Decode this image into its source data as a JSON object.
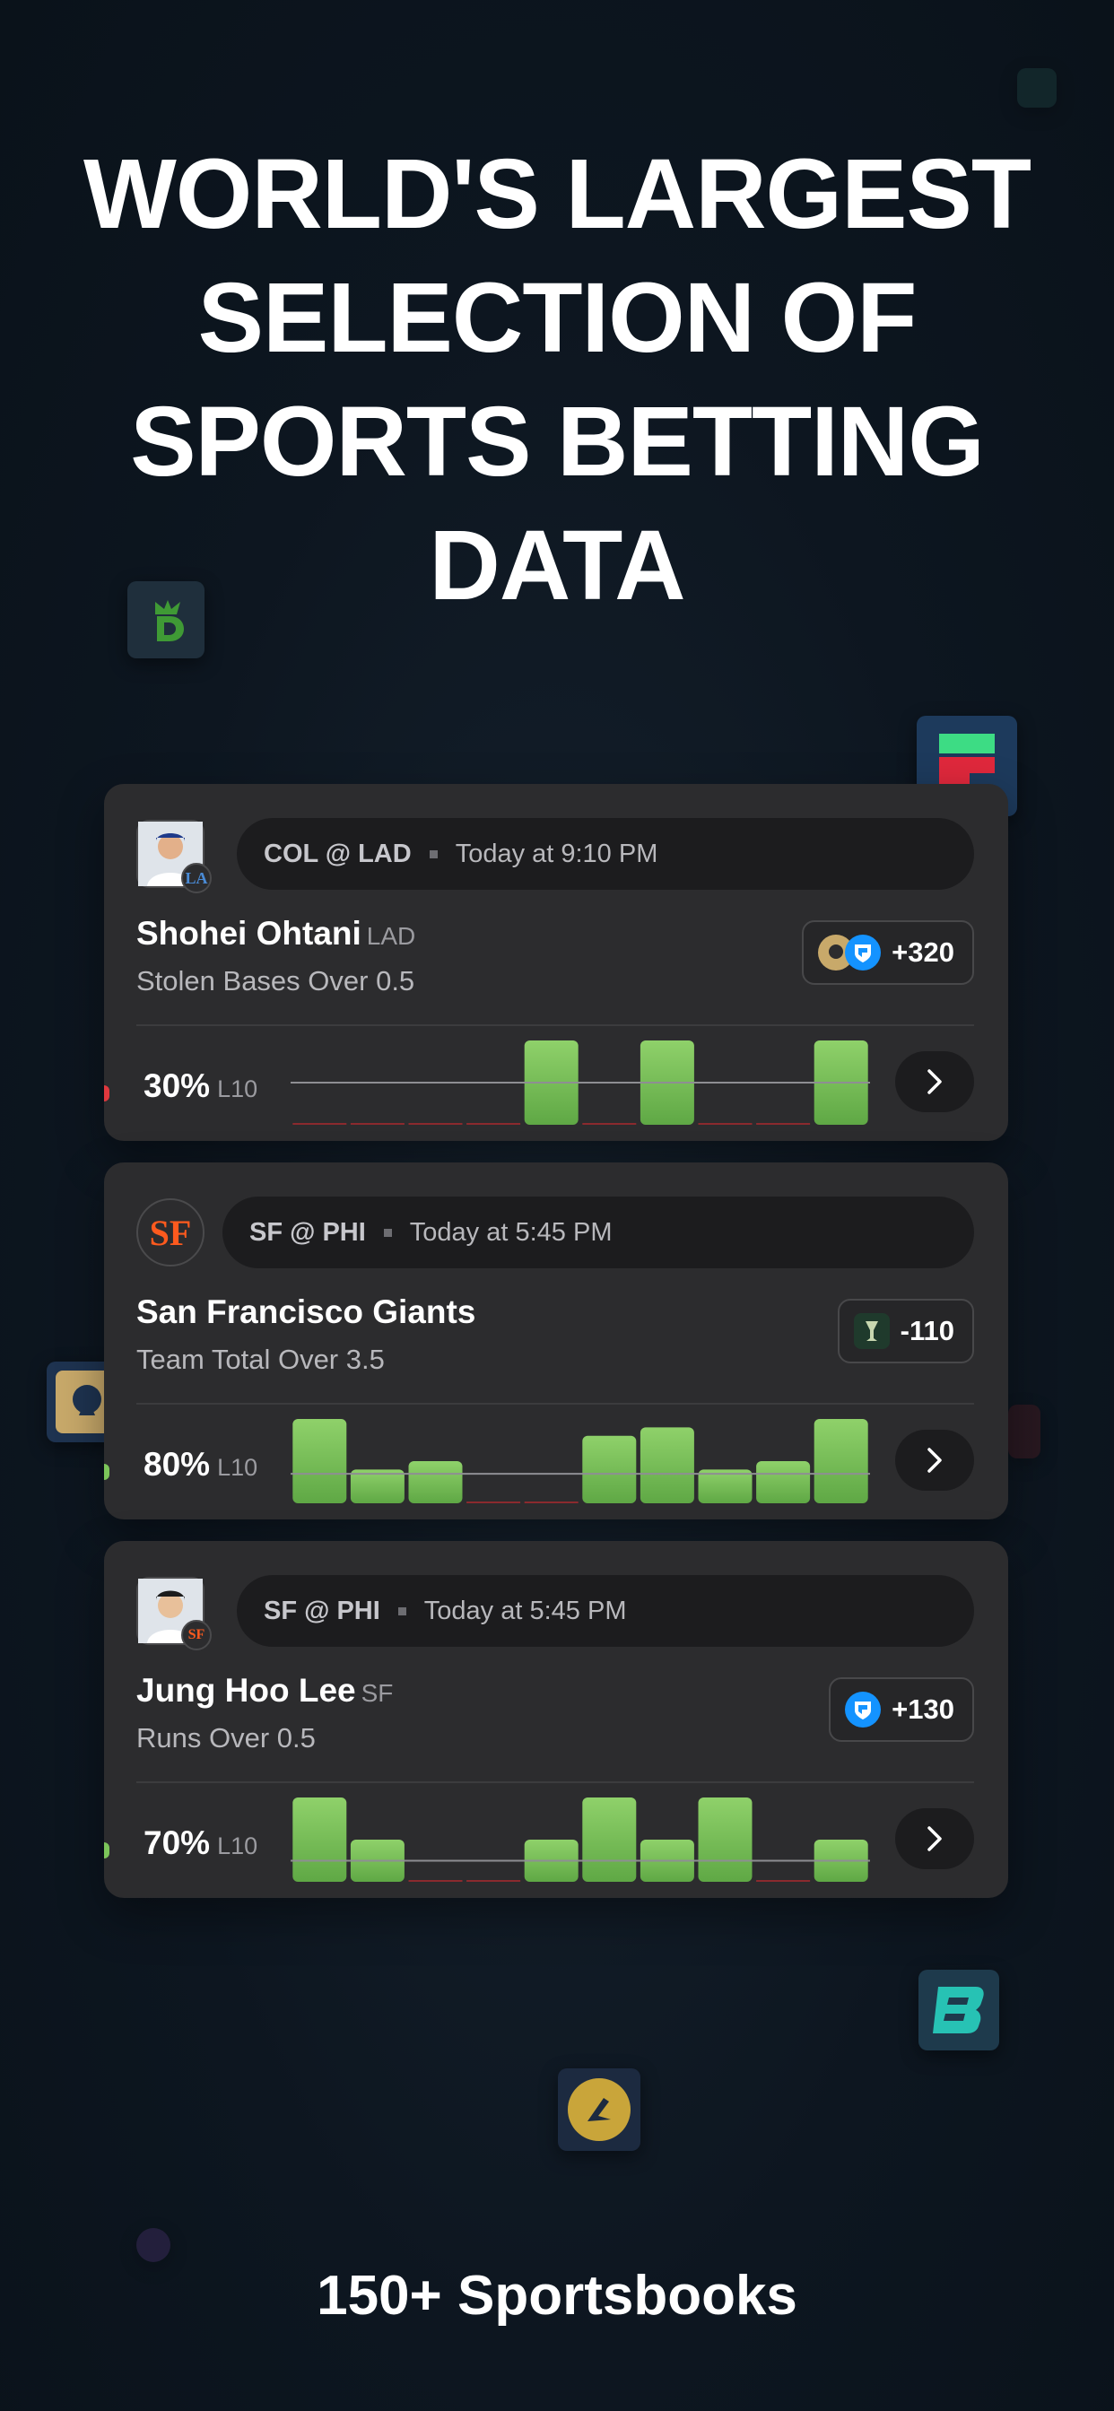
{
  "headline": {
    "line1": "WORLD'S LARGEST",
    "line2": "SELECTION OF",
    "line3": "SPORTS BETTING",
    "line4": "DATA"
  },
  "footer": "150+ Sportsbooks",
  "sportsbook_logos": [
    "draftkings-logo",
    "fliff-logo",
    "betmgm-logo",
    "betrivers-logo",
    "bet365-logo"
  ],
  "colors": {
    "hit_bar": "#7cc55a",
    "miss_line": "#8b2a2e",
    "card_bg": "#2c2c2e",
    "pill_bg": "#1c1c1e"
  },
  "cards": [
    {
      "matchup": "COL @ LAD",
      "time": "Today at 9:10 PM",
      "name": "Shohei Ohtani",
      "team": "LAD",
      "market": "Stolen Bases Over 0.5",
      "odds": "+320",
      "books": [
        "betmgm-icon",
        "fanduel-icon"
      ],
      "pct": "30%",
      "window": "L10",
      "edge_color": "#e0383e",
      "bars": [
        0,
        0,
        0,
        0,
        1,
        0,
        1,
        0,
        0,
        1
      ],
      "line": 0.5
    },
    {
      "matchup": "SF @ PHI",
      "time": "Today at 5:45 PM",
      "name": "San Francisco Giants",
      "team": "",
      "market": "Team Total Over 3.5",
      "odds": "-110",
      "books": [
        "circa-icon"
      ],
      "pct": "80%",
      "window": "L10",
      "edge_color": "#7cc55a",
      "bars": [
        1,
        0.4,
        0.5,
        0,
        0,
        0.8,
        0.9,
        0.4,
        0.5,
        1
      ],
      "line": 0.35
    },
    {
      "matchup": "SF @ PHI",
      "time": "Today at 5:45 PM",
      "name": "Jung Hoo Lee",
      "team": "SF",
      "market": "Runs Over 0.5",
      "odds": "+130",
      "books": [
        "fanduel-icon"
      ],
      "pct": "70%",
      "window": "L10",
      "edge_color": "#7cc55a",
      "bars": [
        1,
        0.5,
        0,
        0,
        0.5,
        1,
        0.5,
        1,
        0,
        0.5
      ],
      "line": 0.25
    }
  ]
}
